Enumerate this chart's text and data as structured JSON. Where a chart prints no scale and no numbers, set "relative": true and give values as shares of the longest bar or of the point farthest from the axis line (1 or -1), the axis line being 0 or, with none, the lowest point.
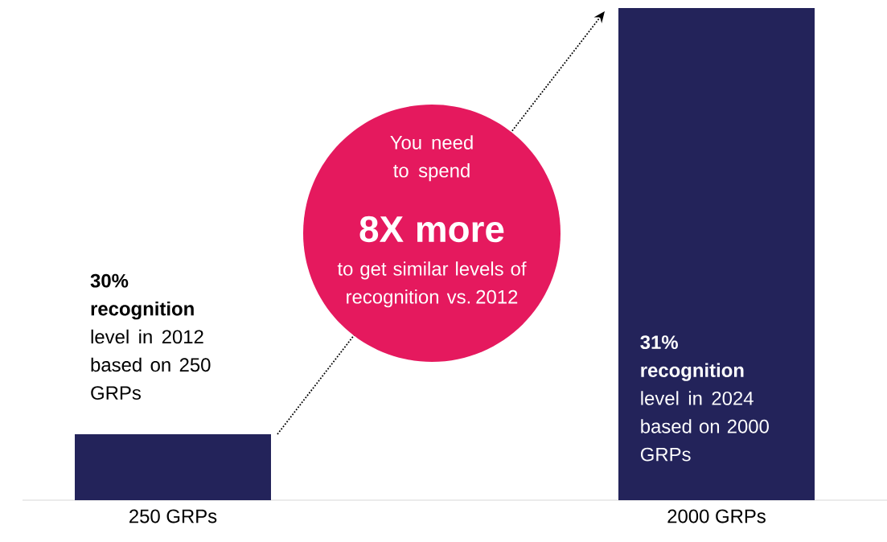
{
  "chart_data": {
    "type": "bar",
    "relative": true,
    "categories": [
      "250 GRPs",
      "2000 GRPs"
    ],
    "values": [
      0.134,
      1
    ],
    "color": "#23235a",
    "annotations": [
      "**30% recognition** level in 2012 based on 250 GRPs",
      "**31% recognition** level in 2024 based on 2000 GRPs",
      "You need to spend",
      "**8X more**",
      "to get similar levels of recognition vs. 2012"
    ]
  }
}
